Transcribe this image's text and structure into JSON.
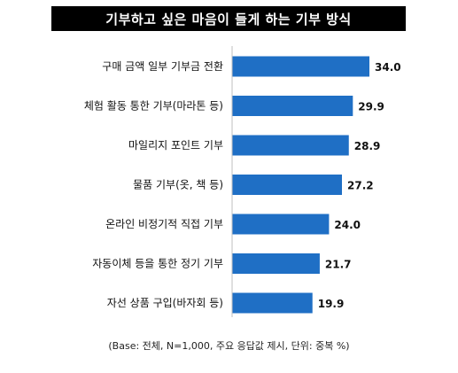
{
  "chart_data": {
    "type": "bar",
    "orientation": "horizontal",
    "title": "기부하고 싶은 마음이 들게 하는 기부 방식",
    "categories": [
      "구매 금액 일부 기부금 전환",
      "체험 활동 통한 기부(마라톤 등)",
      "마일리지 포인트 기부",
      "물품 기부(옷, 책 등)",
      "온라인 비정기적 직접 기부",
      "자동이체 등을 통한 정기 기부",
      "자선 상품 구입(바자회 등)"
    ],
    "values": [
      34.0,
      29.9,
      28.9,
      27.2,
      24.0,
      21.7,
      19.9
    ],
    "value_labels": [
      "34.0",
      "29.9",
      "28.9",
      "27.2",
      "24.0",
      "21.7",
      "19.9"
    ],
    "xlim": [
      0,
      34.0
    ],
    "bar_color": "#1f6fc5",
    "grid": false,
    "footnote": "(Base: 전체, N=1,000, 주요 응답값 제시, 단위: 중복 %)"
  }
}
